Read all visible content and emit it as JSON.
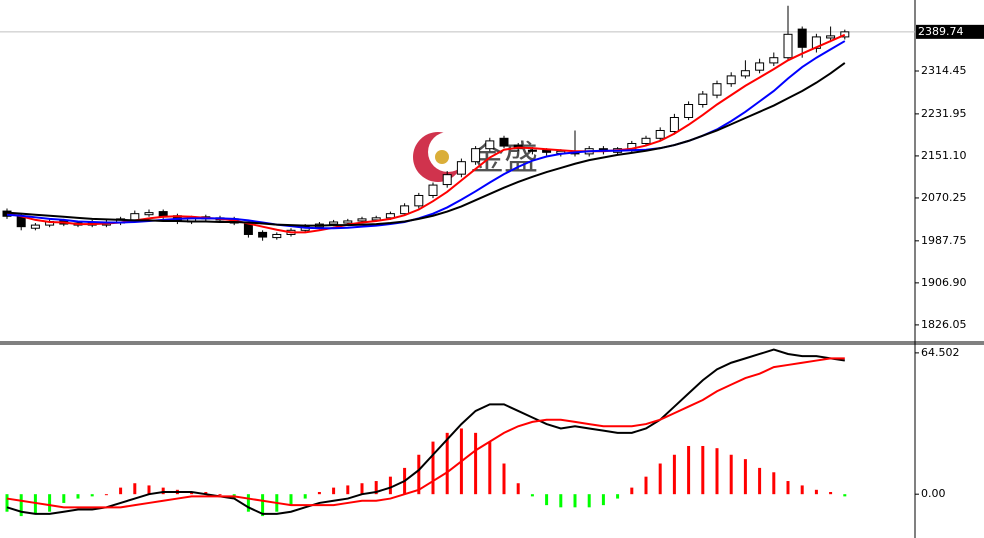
{
  "chart_data": [
    {
      "type": "candlestick",
      "watermark": "金盛",
      "up_color": "#ffffff",
      "down_color": "#000000",
      "outline": "#000000",
      "last_line_color": "#c0c0c0",
      "open": [
        2045,
        2035,
        2012,
        2018,
        2026,
        2018,
        2024,
        2018,
        2022,
        2028,
        2038,
        2044,
        2036,
        2024,
        2034,
        2032,
        2030,
        2020,
        2004,
        1994,
        2000,
        2008,
        2014,
        2020,
        2022,
        2026,
        2028,
        2032,
        2040,
        2055,
        2075,
        2096,
        2116,
        2140,
        2165,
        2185,
        2172,
        2162,
        2162,
        2156,
        2160,
        2155,
        2165,
        2158,
        2163,
        2175,
        2185,
        2198,
        2225,
        2250,
        2268,
        2290,
        2305,
        2316,
        2330,
        2340,
        2395,
        2358,
        2378,
        2380
      ],
      "high": [
        2050,
        2040,
        2022,
        2030,
        2030,
        2026,
        2028,
        2028,
        2034,
        2046,
        2048,
        2048,
        2040,
        2036,
        2038,
        2036,
        2034,
        2024,
        2008,
        2004,
        2012,
        2020,
        2024,
        2028,
        2030,
        2034,
        2036,
        2044,
        2060,
        2080,
        2100,
        2122,
        2146,
        2170,
        2186,
        2190,
        2176,
        2168,
        2166,
        2164,
        2200,
        2170,
        2170,
        2168,
        2180,
        2190,
        2206,
        2232,
        2256,
        2276,
        2296,
        2312,
        2335,
        2338,
        2350,
        2440,
        2400,
        2386,
        2400,
        2394
      ],
      "low": [
        2030,
        2008,
        2008,
        2014,
        2016,
        2014,
        2014,
        2014,
        2018,
        2026,
        2034,
        2030,
        2020,
        2020,
        2026,
        2024,
        2018,
        1994,
        1988,
        1990,
        1996,
        2004,
        2010,
        2016,
        2018,
        2022,
        2024,
        2028,
        2036,
        2050,
        2070,
        2090,
        2110,
        2134,
        2160,
        2166,
        2160,
        2154,
        2152,
        2150,
        2150,
        2150,
        2154,
        2152,
        2158,
        2170,
        2180,
        2192,
        2220,
        2244,
        2262,
        2284,
        2300,
        2310,
        2324,
        2335,
        2340,
        2350,
        2370,
        2375
      ],
      "close": [
        2035,
        2015,
        2018,
        2025,
        2020,
        2022,
        2018,
        2024,
        2030,
        2040,
        2042,
        2035,
        2025,
        2032,
        2030,
        2028,
        2022,
        2000,
        1995,
        2000,
        2008,
        2015,
        2020,
        2024,
        2026,
        2030,
        2032,
        2040,
        2055,
        2075,
        2095,
        2115,
        2140,
        2165,
        2180,
        2170,
        2165,
        2160,
        2158,
        2160,
        2155,
        2165,
        2160,
        2165,
        2175,
        2185,
        2200,
        2225,
        2250,
        2270,
        2290,
        2305,
        2315,
        2330,
        2340,
        2385,
        2360,
        2380,
        2382,
        2389.74
      ],
      "ma": [
        {
          "color": "#ff0000",
          "values": [
            2040,
            2035,
            2028,
            2024,
            2023,
            2020,
            2020,
            2021,
            2023,
            2027,
            2031,
            2034,
            2035,
            2034,
            2032,
            2030,
            2027,
            2021,
            2015,
            2009,
            2004,
            2004,
            2008,
            2013,
            2019,
            2023,
            2026,
            2030,
            2037,
            2048,
            2064,
            2082,
            2104,
            2126,
            2148,
            2163,
            2167,
            2166,
            2164,
            2162,
            2160,
            2160,
            2160,
            2162,
            2165,
            2171,
            2180,
            2194,
            2211,
            2230,
            2250,
            2268,
            2286,
            2302,
            2318,
            2335,
            2348,
            2360,
            2372,
            2384
          ]
        },
        {
          "color": "#0000ff",
          "values": [
            2038,
            2036,
            2033,
            2030,
            2028,
            2025,
            2024,
            2023,
            2023,
            2024,
            2026,
            2028,
            2030,
            2031,
            2031,
            2031,
            2030,
            2027,
            2023,
            2019,
            2016,
            2013,
            2012,
            2012,
            2013,
            2015,
            2017,
            2020,
            2024,
            2031,
            2040,
            2052,
            2067,
            2083,
            2100,
            2116,
            2130,
            2142,
            2150,
            2155,
            2158,
            2160,
            2161,
            2161,
            2162,
            2163,
            2166,
            2172,
            2180,
            2190,
            2202,
            2218,
            2236,
            2256,
            2276,
            2300,
            2322,
            2340,
            2356,
            2372
          ]
        },
        {
          "color": "#000000",
          "values": [
            2042,
            2040,
            2038,
            2036,
            2034,
            2032,
            2030,
            2029,
            2028,
            2027,
            2027,
            2026,
            2026,
            2025,
            2025,
            2024,
            2024,
            2023,
            2021,
            2019,
            2018,
            2017,
            2017,
            2018,
            2018,
            2019,
            2020,
            2022,
            2025,
            2030,
            2036,
            2044,
            2054,
            2066,
            2078,
            2090,
            2101,
            2111,
            2120,
            2128,
            2136,
            2143,
            2148,
            2153,
            2157,
            2161,
            2166,
            2172,
            2180,
            2190,
            2200,
            2212,
            2224,
            2236,
            2248,
            2262,
            2276,
            2292,
            2310,
            2330
          ]
        }
      ],
      "ylim": [
        1797,
        2451
      ],
      "yticks": [
        2314.45,
        2231.95,
        {
          "value": 2151.1,
          "label": "2151.10"
        },
        2070.25,
        1987.75,
        {
          "value": 1906.9,
          "label": "1906.90"
        },
        1826.05
      ]
    },
    {
      "type": "macd",
      "series": [
        {
          "color": "#000000",
          "values": [
            -6,
            -8,
            -9,
            -9,
            -8,
            -7,
            -7,
            -6,
            -4,
            -2,
            0,
            1,
            1,
            1,
            0,
            -1,
            -2,
            -6,
            -9,
            -9,
            -8,
            -6,
            -4,
            -3,
            -2,
            0,
            1,
            3,
            6,
            11,
            18,
            25,
            32,
            38,
            41,
            41,
            38,
            35,
            32,
            30,
            31,
            30,
            29,
            28,
            28,
            30,
            34,
            40,
            46,
            52,
            57,
            60,
            62,
            64,
            66,
            64,
            63,
            63,
            62,
            61
          ]
        },
        {
          "color": "#ff0000",
          "values": [
            -2,
            -3,
            -4,
            -5,
            -6,
            -6,
            -6,
            -6,
            -6,
            -5,
            -4,
            -3,
            -2,
            -1,
            -1,
            -1,
            -1,
            -2,
            -3,
            -4,
            -5,
            -5,
            -5,
            -5,
            -4,
            -3,
            -3,
            -2,
            0,
            2,
            6,
            10,
            15,
            20,
            24,
            28,
            31,
            33,
            34,
            34,
            33,
            32,
            31,
            31,
            31,
            32,
            34,
            37,
            40,
            43,
            47,
            50,
            53,
            55,
            58,
            59,
            60,
            61,
            62,
            62
          ]
        }
      ],
      "histogram": {
        "up_color": "#ff0000",
        "down_color": "#00ff00",
        "values": [
          -8,
          -10,
          -9,
          -8,
          -4,
          -2,
          -1,
          0,
          3,
          5,
          4,
          3,
          2,
          1,
          1,
          0,
          -2,
          -8,
          -10,
          -8,
          -5,
          -2,
          1,
          3,
          4,
          5,
          6,
          8,
          12,
          18,
          24,
          28,
          30,
          28,
          24,
          14,
          5,
          -1,
          -5,
          -6,
          -6,
          -6,
          -5,
          -2,
          3,
          8,
          14,
          18,
          22,
          22,
          21,
          18,
          16,
          12,
          10,
          6,
          4,
          2,
          1,
          -1
        ]
      },
      "ylim": [
        -20,
        68.1
      ],
      "yticks": [
        64.502,
        {
          "value": 0,
          "label": "0.00"
        }
      ]
    }
  ]
}
